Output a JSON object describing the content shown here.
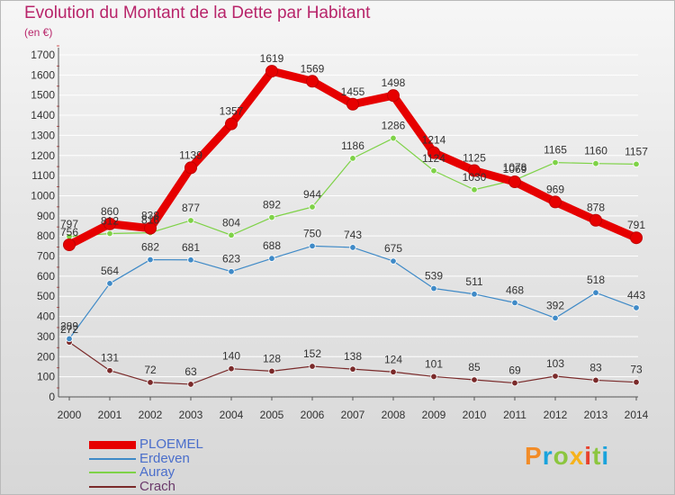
{
  "chart_data": {
    "type": "line",
    "title": "Evolution du Montant de la Dette par Habitant",
    "subtitle": "(en €)",
    "x": [
      "2000",
      "2001",
      "2002",
      "2003",
      "2004",
      "2005",
      "2006",
      "2007",
      "2008",
      "2009",
      "2010",
      "2011",
      "2012",
      "2013",
      "2014"
    ],
    "ylim": [
      0,
      1700
    ],
    "yticks": [
      0,
      100,
      200,
      300,
      400,
      500,
      600,
      700,
      800,
      900,
      1000,
      1100,
      1200,
      1300,
      1400,
      1500,
      1600,
      1700
    ],
    "series": [
      {
        "name": "PLOEMEL",
        "color": "#e60000",
        "values": [
          756,
          860,
          838,
          1139,
          1357,
          1619,
          1569,
          1455,
          1498,
          1214,
          1125,
          1069,
          969,
          878,
          791
        ]
      },
      {
        "name": "Erdeven",
        "color": "#3f8ac7",
        "values": [
          289,
          564,
          682,
          681,
          623,
          688,
          750,
          743,
          675,
          539,
          511,
          468,
          392,
          518,
          443
        ]
      },
      {
        "name": "Auray",
        "color": "#7ed247",
        "values": [
          797,
          812,
          816,
          877,
          804,
          892,
          944,
          1186,
          1286,
          1124,
          1030,
          1078,
          1165,
          1160,
          1157
        ]
      },
      {
        "name": "Crach",
        "color": "#7a2a2a",
        "values": [
          272,
          131,
          72,
          63,
          140,
          128,
          152,
          138,
          124,
          101,
          85,
          69,
          103,
          83,
          73
        ]
      }
    ]
  },
  "logo": {
    "letters": [
      "P",
      "r",
      "o",
      "x",
      "i",
      "t",
      "i"
    ],
    "colors": [
      "#f28c28",
      "#1aa3dc",
      "#8cc63f",
      "#f6b21b",
      "#e8412c",
      "#8cc63f",
      "#1aa3dc"
    ]
  }
}
